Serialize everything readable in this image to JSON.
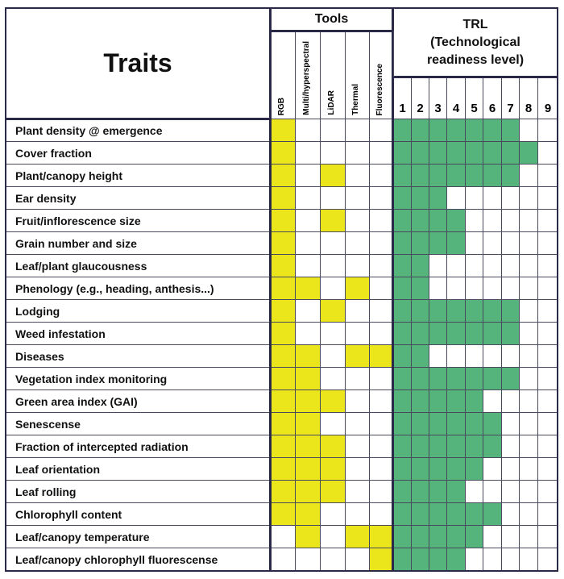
{
  "header": {
    "traits_title": "Traits",
    "tools_title": "Tools",
    "trl_title_line1": "TRL",
    "trl_title_line2": "(Technological",
    "trl_title_line3": "readiness level)"
  },
  "tools": [
    "RGB",
    "Multi/hyperspectral",
    "LiDAR",
    "Thermal",
    "Fluorescence"
  ],
  "trl_levels": [
    "1",
    "2",
    "3",
    "4",
    "5",
    "6",
    "7",
    "8",
    "9"
  ],
  "colors": {
    "tool": "#ebe51b",
    "trl": "#55b37c",
    "grid": "#4a4a5e"
  },
  "rows": [
    {
      "trait": "Plant density @ emergence",
      "tools": [
        1,
        0,
        0,
        0,
        0
      ],
      "trl": 7
    },
    {
      "trait": "Cover fraction",
      "tools": [
        1,
        0,
        0,
        0,
        0
      ],
      "trl": 8
    },
    {
      "trait": "Plant/canopy height",
      "tools": [
        1,
        0,
        1,
        0,
        0
      ],
      "trl": 7
    },
    {
      "trait": "Ear density",
      "tools": [
        1,
        0,
        0,
        0,
        0
      ],
      "trl": 3
    },
    {
      "trait": "Fruit/inflorescence size",
      "tools": [
        1,
        0,
        1,
        0,
        0
      ],
      "trl": 4
    },
    {
      "trait": "Grain number and size",
      "tools": [
        1,
        0,
        0,
        0,
        0
      ],
      "trl": 4
    },
    {
      "trait": "Leaf/plant glaucousness",
      "tools": [
        1,
        0,
        0,
        0,
        0
      ],
      "trl": 2
    },
    {
      "trait": "Phenology (e.g., heading, anthesis...)",
      "tools": [
        1,
        1,
        0,
        1,
        0
      ],
      "trl": 2
    },
    {
      "trait": "Lodging",
      "tools": [
        1,
        0,
        1,
        0,
        0
      ],
      "trl": 7
    },
    {
      "trait": "Weed infestation",
      "tools": [
        1,
        0,
        0,
        0,
        0
      ],
      "trl": 7
    },
    {
      "trait": "Diseases",
      "tools": [
        1,
        1,
        0,
        1,
        1
      ],
      "trl": 2
    },
    {
      "trait": "Vegetation index monitoring",
      "tools": [
        1,
        1,
        0,
        0,
        0
      ],
      "trl": 7
    },
    {
      "trait": "Green area index (GAI)",
      "tools": [
        1,
        1,
        1,
        0,
        0
      ],
      "trl": 5
    },
    {
      "trait": "Senescense",
      "tools": [
        1,
        1,
        0,
        0,
        0
      ],
      "trl": 6
    },
    {
      "trait": "Fraction of intercepted radiation",
      "tools": [
        1,
        1,
        1,
        0,
        0
      ],
      "trl": 6
    },
    {
      "trait": "Leaf orientation",
      "tools": [
        1,
        1,
        1,
        0,
        0
      ],
      "trl": 5
    },
    {
      "trait": "Leaf rolling",
      "tools": [
        1,
        1,
        1,
        0,
        0
      ],
      "trl": 4
    },
    {
      "trait": "Chlorophyll content",
      "tools": [
        1,
        1,
        0,
        0,
        0
      ],
      "trl": 6
    },
    {
      "trait": "Leaf/canopy temperature",
      "tools": [
        0,
        1,
        0,
        1,
        1
      ],
      "trl": 5
    },
    {
      "trait": "Leaf/canopy chlorophyll fluorescense",
      "tools": [
        0,
        0,
        0,
        0,
        1
      ],
      "trl": 4
    }
  ]
}
